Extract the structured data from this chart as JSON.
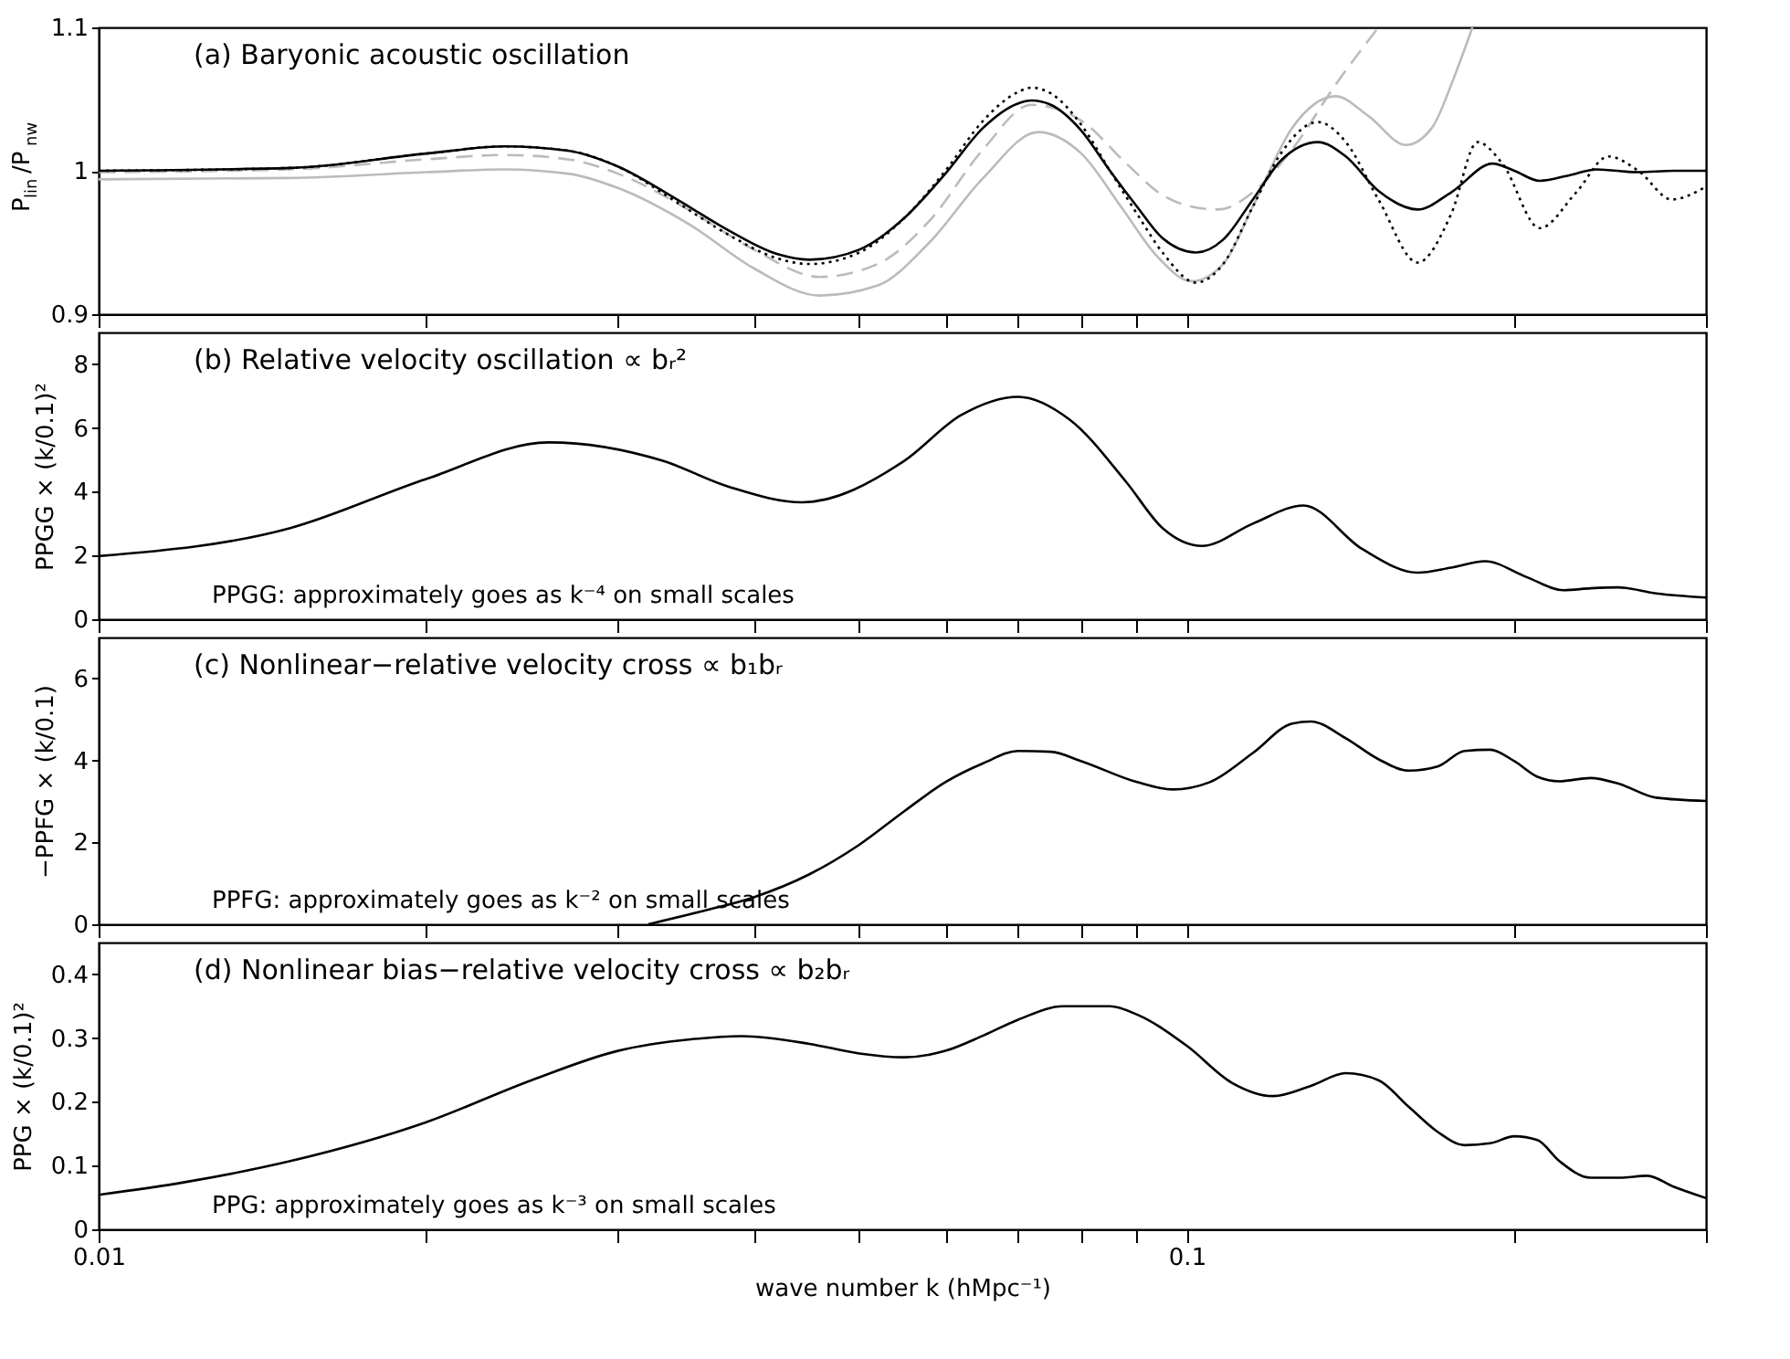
{
  "chart_data": [
    {
      "type": "line",
      "title": "(a) Baryonic acoustic oscillation",
      "ylabel": "P$_{lin}$/P$_{nw}$",
      "xlim": [
        0.01,
        0.3
      ],
      "ylim": [
        0.9,
        1.1
      ],
      "yticks": [
        0.9,
        1,
        1.1
      ],
      "log": "x",
      "tick_labels": "y",
      "xticks": [
        {
          "value": 0.01,
          "label": null
        },
        {
          "value": 0.02,
          "label": null
        },
        {
          "value": 0.03,
          "label": null
        },
        {
          "value": 0.04,
          "label": null
        },
        {
          "value": 0.05,
          "label": null
        },
        {
          "value": 0.06,
          "label": null
        },
        {
          "value": 0.07,
          "label": null
        },
        {
          "value": 0.08,
          "label": null
        },
        {
          "value": 0.09,
          "label": null
        },
        {
          "value": 0.1,
          "label": null
        },
        {
          "value": 0.2,
          "label": null
        },
        {
          "value": 0.3,
          "label": null
        }
      ],
      "series": [
        {
          "color": "#bbbbbb",
          "line_style": "solid",
          "x": [
            0.01,
            0.015,
            0.02,
            0.0236,
            0.027,
            0.03,
            0.035,
            0.04,
            0.046,
            0.052,
            0.058,
            0.065,
            0.073,
            0.08,
            0.087,
            0.094,
            0.101,
            0.108,
            0.115,
            0.125,
            0.137,
            0.147,
            0.159,
            0.168,
            0.176,
            0.183
          ],
          "values": [
            0.994,
            0.995,
            0.999,
            1.001,
            0.998,
            0.988,
            0.962,
            0.932,
            0.913,
            0.92,
            0.95,
            0.995,
            1.027,
            1.012,
            0.975,
            0.94,
            0.923,
            0.935,
            0.975,
            1.03,
            1.052,
            1.038,
            1.018,
            1.03,
            1.065,
            1.1
          ]
        },
        {
          "color": "#bbbbbb",
          "line_style": "dashed",
          "x": [
            0.01,
            0.015,
            0.02,
            0.0236,
            0.027,
            0.03,
            0.035,
            0.04,
            0.046,
            0.052,
            0.058,
            0.065,
            0.072,
            0.08,
            0.088,
            0.095,
            0.101,
            0.107,
            0.115,
            0.125,
            0.137,
            0.15
          ],
          "values": [
            0.999,
            1.001,
            1.008,
            1.011,
            1.008,
            0.998,
            0.972,
            0.945,
            0.926,
            0.935,
            0.965,
            1.015,
            1.046,
            1.035,
            1.005,
            0.983,
            0.975,
            0.973,
            0.985,
            1.015,
            1.06,
            1.1
          ]
        },
        {
          "color": "#000000",
          "line_style": "dotted",
          "x": [
            0.01,
            0.015,
            0.02,
            0.0236,
            0.027,
            0.03,
            0.034,
            0.038,
            0.042,
            0.045,
            0.05,
            0.055,
            0.06,
            0.065,
            0.07,
            0.072,
            0.075,
            0.08,
            0.085,
            0.09,
            0.095,
            0.102,
            0.108,
            0.115,
            0.122,
            0.132,
            0.14,
            0.15,
            0.163,
            0.175,
            0.185,
            0.195,
            0.211,
            0.228,
            0.244,
            0.26,
            0.279,
            0.3
          ],
          "values": [
            1.0,
            1.002,
            1.012,
            1.017,
            1.014,
            1.003,
            0.978,
            0.955,
            0.939,
            0.935,
            0.943,
            0.967,
            1.0,
            1.035,
            1.055,
            1.058,
            1.054,
            1.032,
            1.0,
            0.97,
            0.943,
            0.922,
            0.935,
            0.975,
            1.012,
            1.034,
            1.02,
            0.98,
            0.936,
            0.97,
            1.02,
            1.005,
            0.96,
            0.985,
            1.01,
            1.0,
            0.98,
            0.989
          ]
        },
        {
          "color": "#000000",
          "line_style": "solid",
          "x": [
            0.01,
            0.015,
            0.02,
            0.0236,
            0.027,
            0.03,
            0.034,
            0.038,
            0.042,
            0.045,
            0.05,
            0.055,
            0.06,
            0.065,
            0.07,
            0.072,
            0.075,
            0.08,
            0.085,
            0.09,
            0.095,
            0.102,
            0.108,
            0.115,
            0.122,
            0.132,
            0.14,
            0.15,
            0.163,
            0.175,
            0.191,
            0.2,
            0.211,
            0.225,
            0.238,
            0.26,
            0.28,
            0.3
          ],
          "values": [
            1.0,
            1.002,
            1.012,
            1.017,
            1.014,
            1.003,
            0.98,
            0.958,
            0.942,
            0.938,
            0.945,
            0.967,
            0.998,
            1.03,
            1.047,
            1.049,
            1.046,
            1.028,
            1.0,
            0.975,
            0.953,
            0.943,
            0.952,
            0.98,
            1.007,
            1.02,
            1.01,
            0.986,
            0.973,
            0.985,
            1.005,
            1.0,
            0.993,
            0.997,
            1.001,
            0.999,
            1.0,
            1.0
          ]
        }
      ]
    },
    {
      "type": "line",
      "title": "(b) Relative velocity oscillation ∝ bᵣ²",
      "ylabel": "PPGG × (k/0.1)²",
      "xlim": [
        0.01,
        0.3
      ],
      "ylim": [
        0,
        9
      ],
      "yticks": [
        0,
        2,
        4,
        6,
        8
      ],
      "log": "x",
      "tick_labels": "y",
      "xticks": [
        {
          "value": 0.01,
          "label": null
        },
        {
          "value": 0.02,
          "label": null
        },
        {
          "value": 0.03,
          "label": null
        },
        {
          "value": 0.04,
          "label": null
        },
        {
          "value": 0.05,
          "label": null
        },
        {
          "value": 0.06,
          "label": null
        },
        {
          "value": 0.07,
          "label": null
        },
        {
          "value": 0.08,
          "label": null
        },
        {
          "value": 0.09,
          "label": null
        },
        {
          "value": 0.1,
          "label": null
        },
        {
          "value": 0.2,
          "label": null
        },
        {
          "value": 0.3,
          "label": null
        }
      ],
      "annotations": [
        "PPGG: approximately goes as k⁻⁴ on small scales"
      ],
      "series": [
        {
          "color": "#000000",
          "x": [
            0.01,
            0.015,
            0.02,
            0.0259,
            0.033,
            0.038,
            0.0443,
            0.055,
            0.062,
            0.07,
            0.078,
            0.088,
            0.095,
            0.1033,
            0.115,
            0.128,
            0.145,
            0.163,
            0.175,
            0.188,
            0.205,
            0.222,
            0.235,
            0.249,
            0.27,
            0.3
          ],
          "values": [
            1.98,
            2.86,
            4.4,
            5.55,
            4.97,
            4.15,
            3.67,
            4.97,
            6.4,
            6.98,
            6.27,
            4.3,
            2.86,
            2.3,
            3.0,
            3.57,
            2.2,
            1.46,
            1.62,
            1.82,
            1.33,
            0.91,
            0.97,
            1.0,
            0.81,
            0.68
          ]
        }
      ]
    },
    {
      "type": "line",
      "title": "(c) Nonlinear−relative velocity cross ∝ b₁bᵣ",
      "ylabel": "−PPFG × (k/0.1)",
      "xlim": [
        0.01,
        0.3
      ],
      "ylim": [
        0,
        7
      ],
      "yticks": [
        0,
        2,
        4,
        6
      ],
      "log": "x",
      "tick_labels": "y",
      "xticks": [
        {
          "value": 0.01,
          "label": null
        },
        {
          "value": 0.02,
          "label": null
        },
        {
          "value": 0.03,
          "label": null
        },
        {
          "value": 0.04,
          "label": null
        },
        {
          "value": 0.05,
          "label": null
        },
        {
          "value": 0.06,
          "label": null
        },
        {
          "value": 0.07,
          "label": null
        },
        {
          "value": 0.08,
          "label": null
        },
        {
          "value": 0.09,
          "label": null
        },
        {
          "value": 0.1,
          "label": null
        },
        {
          "value": 0.2,
          "label": null
        },
        {
          "value": 0.3,
          "label": null
        }
      ],
      "annotations": [
        "PPFG: approximately goes as k⁻² on small scales"
      ],
      "series": [
        {
          "color": "#000000",
          "x": [
            0.032,
            0.036,
            0.04,
            0.045,
            0.05,
            0.055,
            0.06,
            0.065,
            0.07,
            0.075,
            0.08,
            0.09,
            0.097,
            0.105,
            0.115,
            0.125,
            0.13,
            0.14,
            0.15,
            0.16,
            0.17,
            0.18,
            0.19,
            0.2,
            0.21,
            0.22,
            0.235,
            0.25,
            0.27,
            0.3
          ],
          "values": [
            0,
            0.33,
            0.66,
            1.22,
            1.94,
            2.76,
            3.47,
            3.93,
            4.23,
            4.21,
            3.98,
            3.47,
            3.29,
            3.47,
            4.18,
            4.9,
            4.95,
            4.54,
            4.03,
            3.75,
            3.85,
            4.23,
            4.26,
            3.98,
            3.6,
            3.49,
            3.57,
            3.42,
            3.09,
            3.01
          ]
        }
      ]
    },
    {
      "type": "line",
      "title": "(d) Nonlinear bias−relative velocity cross ∝ b₂bᵣ",
      "ylabel": "PPG × (k/0.1)²",
      "xlabel": "wave number k (hMpc⁻¹)",
      "xlim": [
        0.01,
        0.3
      ],
      "ylim": [
        0,
        0.45
      ],
      "yticks": [
        0,
        0.1,
        0.2,
        0.3,
        0.4
      ],
      "log": "x",
      "xticks": [
        0.01,
        {
          "value": 0.02,
          "label": null
        },
        {
          "value": 0.03,
          "label": null
        },
        {
          "value": 0.04,
          "label": null
        },
        {
          "value": 0.05,
          "label": null
        },
        {
          "value": 0.06,
          "label": null
        },
        {
          "value": 0.07,
          "label": null
        },
        {
          "value": 0.08,
          "label": null
        },
        {
          "value": 0.09,
          "label": null
        },
        0.1,
        {
          "value": 0.2,
          "label": null
        },
        {
          "value": 0.3,
          "label": null
        }
      ],
      "annotations": [
        "PPG: approximately goes as k⁻³ on small scales"
      ],
      "series": [
        {
          "color": "#000000",
          "x": [
            0.01,
            0.012,
            0.015,
            0.02,
            0.025,
            0.03,
            0.035,
            0.039,
            0.045,
            0.05,
            0.055,
            0.06,
            0.065,
            0.07,
            0.077,
            0.085,
            0.09,
            0.1,
            0.11,
            0.12,
            0.13,
            0.14,
            0.15,
            0.16,
            0.17,
            0.18,
            0.19,
            0.2,
            0.21,
            0.22,
            0.235,
            0.25,
            0.265,
            0.28,
            0.3
          ],
          "values": [
            0.054,
            0.074,
            0.107,
            0.168,
            0.234,
            0.28,
            0.298,
            0.303,
            0.291,
            0.276,
            0.27,
            0.28,
            0.304,
            0.329,
            0.35,
            0.35,
            0.337,
            0.288,
            0.23,
            0.209,
            0.225,
            0.245,
            0.234,
            0.192,
            0.153,
            0.132,
            0.135,
            0.146,
            0.14,
            0.107,
            0.081,
            0.081,
            0.084,
            0.067,
            0.049
          ]
        }
      ]
    }
  ]
}
